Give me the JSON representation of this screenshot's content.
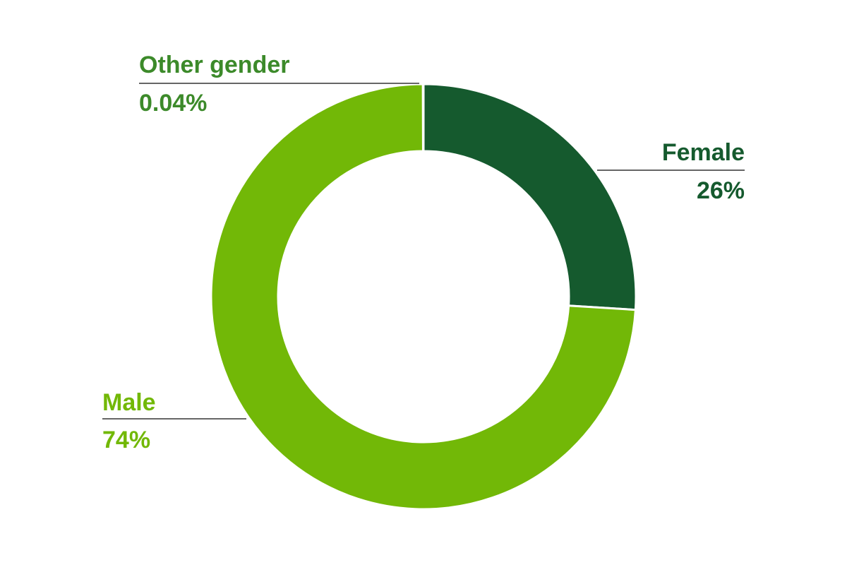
{
  "chart_data": {
    "type": "pie",
    "variant": "donut",
    "slices": [
      {
        "label": "Female",
        "value": 26,
        "value_label": "26%",
        "color": "#155a2e"
      },
      {
        "label": "Male",
        "value": 74,
        "value_label": "74%",
        "color": "#72b807"
      },
      {
        "label": "Other gender",
        "value": 0.04,
        "value_label": "0.04%",
        "color": "#6a9c3a"
      }
    ],
    "label_colors": {
      "Female": "#155a2e",
      "Male": "#72b807",
      "Other gender": "#3c8a2a"
    },
    "leader_line_color": "#666666"
  }
}
